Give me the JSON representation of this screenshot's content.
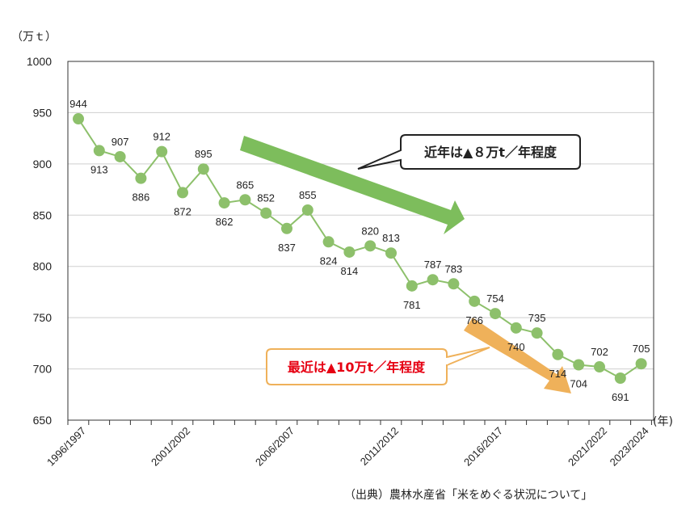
{
  "chart_data": {
    "type": "line",
    "y_unit_label": "（万ｔ）",
    "x_unit_label": "(年)",
    "ylim": [
      650,
      1000
    ],
    "y_ticks": [
      650,
      700,
      750,
      800,
      850,
      900,
      950,
      1000
    ],
    "grid": true,
    "series": [
      {
        "color": "#8dc06b",
        "values": [
          944,
          913,
          907,
          886,
          912,
          872,
          895,
          862,
          865,
          852,
          837,
          855,
          824,
          814,
          820,
          813,
          781,
          787,
          783,
          766,
          754,
          740,
          735,
          714,
          704,
          702,
          691,
          705
        ]
      }
    ],
    "x_tick_labels": [
      {
        "index": 0,
        "label": "1996/1997"
      },
      {
        "index": 5,
        "label": "2001/2002"
      },
      {
        "index": 10,
        "label": "2006/2007"
      },
      {
        "index": 15,
        "label": "2011/2012"
      },
      {
        "index": 20,
        "label": "2016/2017"
      },
      {
        "index": 25,
        "label": "2021/2022"
      },
      {
        "index": 27,
        "label": "2023/2024"
      }
    ],
    "annotations": [
      {
        "text": "近年は▲８万t／年程度",
        "color": "#222222",
        "arrow_color": "#7dbd5c"
      },
      {
        "text": "最近は▲10万t／年程度",
        "color": "#e60012",
        "arrow_color": "#efb15a"
      }
    ],
    "source": "（出典）農林水産省「米をめぐる状況について」"
  }
}
